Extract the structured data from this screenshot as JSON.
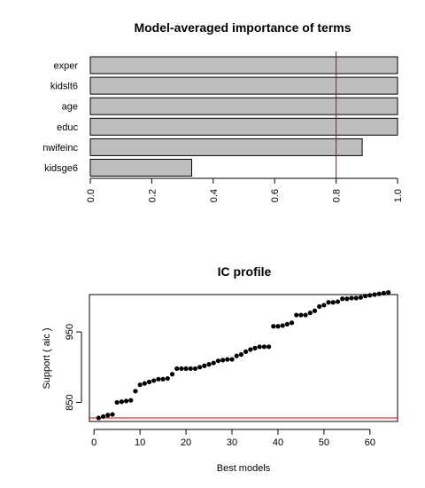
{
  "chart_data": [
    {
      "type": "bar",
      "orientation": "horizontal",
      "title": "Model-averaged importance of terms",
      "categories": [
        "exper",
        "kidslt6",
        "age",
        "educ",
        "nwifeinc",
        "kidsge6"
      ],
      "values": [
        1.0,
        1.0,
        1.0,
        1.0,
        0.885,
        0.33
      ],
      "xlim": [
        0,
        1
      ],
      "xticks": [
        "0.0",
        "0.2",
        "0.4",
        "0.6",
        "0.8",
        "1.0"
      ],
      "xtick_values": [
        0,
        0.2,
        0.4,
        0.6,
        0.8,
        1.0
      ],
      "threshold": 0.8,
      "bar_color": "#bebebe",
      "threshold_color": "#cc0000"
    },
    {
      "type": "scatter",
      "title": "IC profile",
      "xlabel": "Best models",
      "ylabel": "Support ( aic )",
      "xlim": [
        -1,
        66
      ],
      "ylim": [
        823,
        1003
      ],
      "xticks": [
        "0",
        "10",
        "20",
        "30",
        "40",
        "50",
        "60"
      ],
      "xtick_values": [
        0,
        10,
        20,
        30,
        40,
        50,
        60
      ],
      "yticks": [
        "850",
        "950"
      ],
      "ytick_values": [
        850,
        950
      ],
      "reference_line": 828,
      "point_color": "#000000",
      "line_color": "#cc0000",
      "x": [
        1,
        2,
        3,
        4,
        5,
        6,
        7,
        8,
        9,
        10,
        11,
        12,
        13,
        14,
        15,
        16,
        17,
        18,
        19,
        20,
        21,
        22,
        23,
        24,
        25,
        26,
        27,
        28,
        29,
        30,
        31,
        32,
        33,
        34,
        35,
        36,
        37,
        38,
        39,
        40,
        41,
        42,
        43,
        44,
        45,
        46,
        47,
        48,
        49,
        50,
        51,
        52,
        53,
        54,
        55,
        56,
        57,
        58,
        59,
        60,
        61,
        62,
        63,
        64
      ],
      "y": [
        828,
        830,
        832,
        833,
        850,
        851,
        852,
        853,
        866,
        875,
        877,
        879,
        881,
        883,
        883,
        884,
        890,
        898,
        898,
        898,
        898,
        898,
        900,
        902,
        904,
        906,
        909,
        910,
        911,
        911,
        916,
        918,
        922,
        925,
        927,
        929,
        929,
        929,
        958,
        958,
        959,
        961,
        963,
        974,
        974,
        974,
        977,
        980,
        986,
        988,
        992,
        992,
        993,
        997,
        997,
        998,
        998,
        999,
        1001,
        1002,
        1003,
        1004,
        1005,
        1006
      ]
    }
  ]
}
